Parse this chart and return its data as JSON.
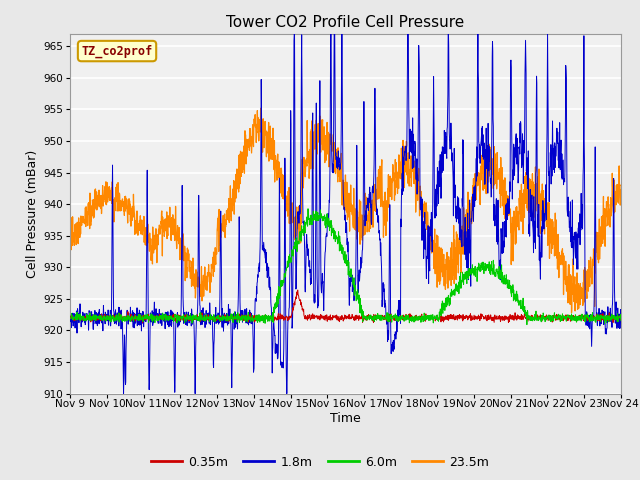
{
  "title": "Tower CO2 Profile Cell Pressure",
  "xlabel": "Time",
  "ylabel": "Cell Pressure (mBar)",
  "ylim": [
    910,
    967
  ],
  "yticks": [
    910,
    915,
    920,
    925,
    930,
    935,
    940,
    945,
    950,
    955,
    960,
    965
  ],
  "series_labels": [
    "0.35m",
    "1.8m",
    "6.0m",
    "23.5m"
  ],
  "series_colors": [
    "#cc0000",
    "#0000cc",
    "#00cc00",
    "#ff8800"
  ],
  "legend_label": "TZ_co2prof",
  "legend_text_color": "#880000",
  "legend_box_facecolor": "#ffffcc",
  "legend_box_edgecolor": "#cc9900",
  "plot_bg_color": "#f0f0f0",
  "fig_bg_color": "#e8e8e8",
  "title_fontsize": 11,
  "axis_label_fontsize": 9,
  "tick_label_fontsize": 7.5,
  "n_points": 2000,
  "x_start": 9,
  "x_end": 24,
  "xtick_positions": [
    9,
    10,
    11,
    12,
    13,
    14,
    15,
    16,
    17,
    18,
    19,
    20,
    21,
    22,
    23,
    24
  ],
  "xtick_labels": [
    "Nov 9",
    "Nov 10",
    "Nov 11",
    "Nov 12",
    "Nov 13",
    "Nov 14",
    "Nov 15",
    "Nov 16",
    "Nov 17",
    "Nov 18",
    "Nov 19",
    "Nov 20",
    "Nov 21",
    "Nov 22",
    "Nov 23",
    "Nov 24"
  ]
}
